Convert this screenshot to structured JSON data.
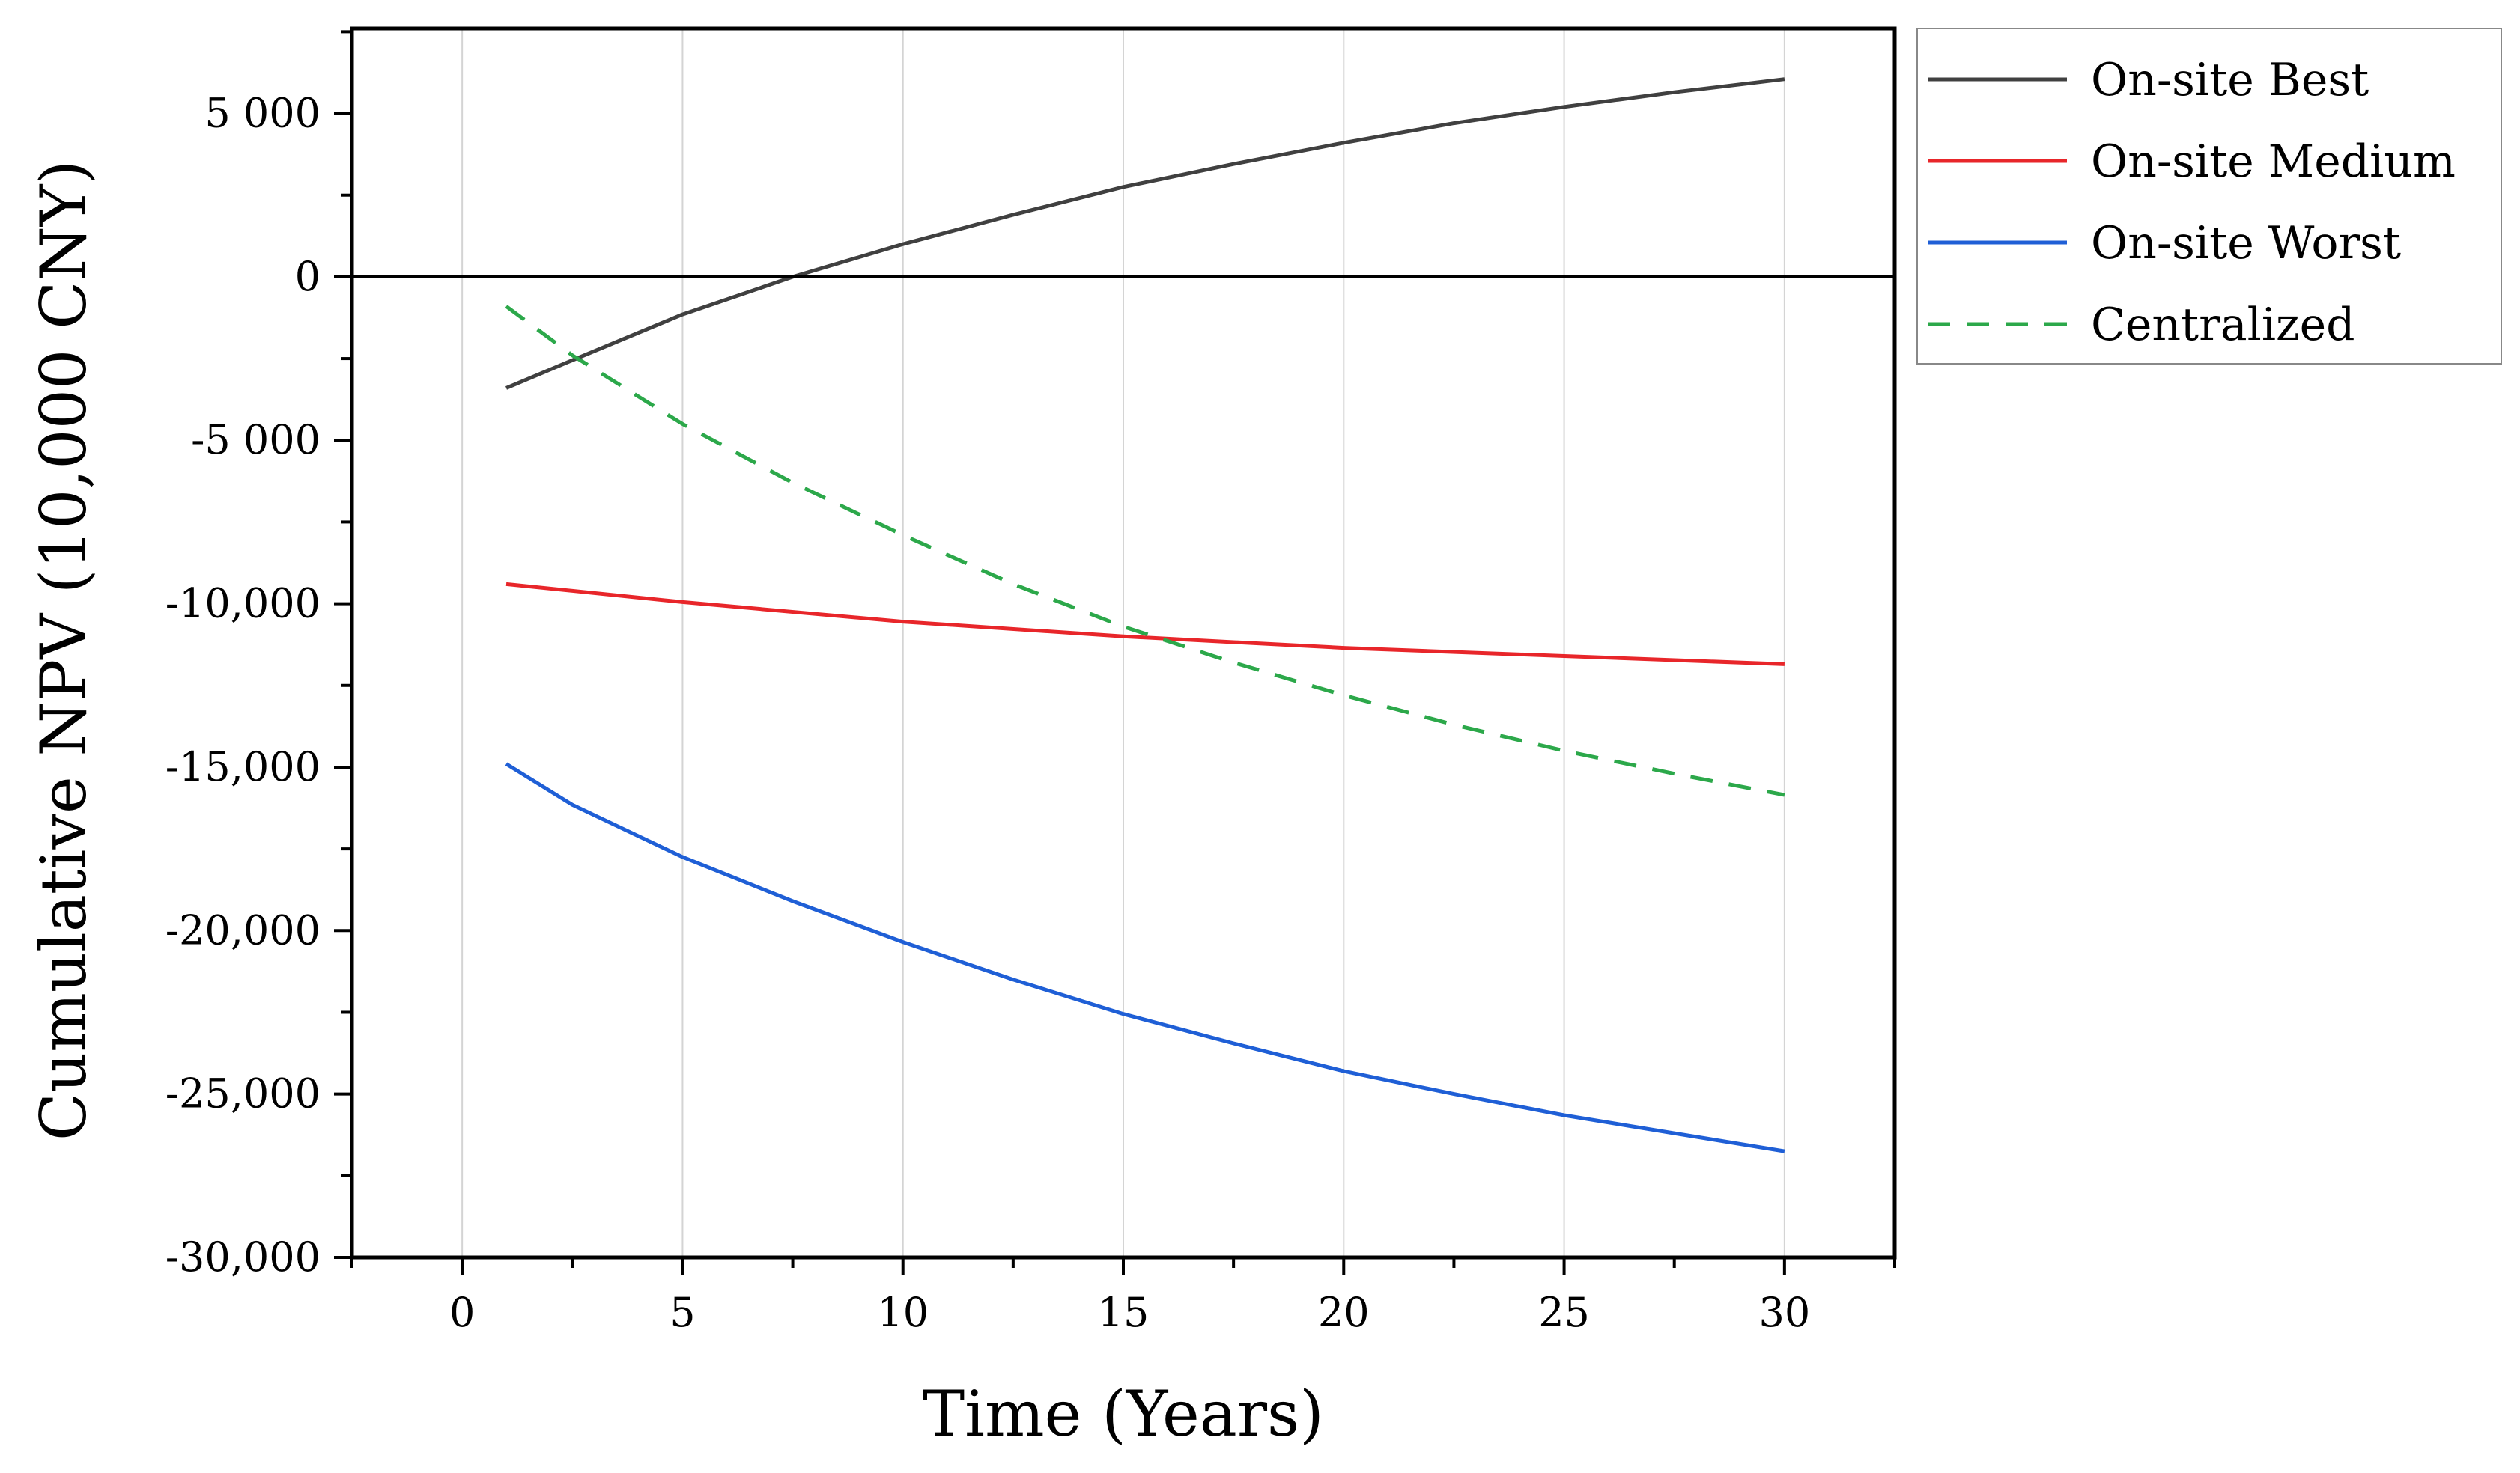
{
  "chart_data": {
    "type": "line",
    "xlabel": "Time (Years)",
    "ylabel": "Cumulative NPV (10,000 CNY)",
    "xlim": [
      -2.5,
      32.5
    ],
    "ylim": [
      -30000,
      7600
    ],
    "xticks": [
      0,
      5,
      10,
      15,
      20,
      25,
      30
    ],
    "xtick_labels": [
      "0",
      "5",
      "10",
      "15",
      "20",
      "25",
      "30"
    ],
    "yticks": [
      5000,
      0,
      -5000,
      -10000,
      -15000,
      -20000,
      -25000,
      -30000
    ],
    "ytick_labels": [
      "5 000",
      "0",
      "-5 000",
      "-10,000",
      "-15,000",
      "-20,000",
      "-25,000",
      "-30,000"
    ],
    "grid": "vertical",
    "legend_position": "top-right-outside",
    "reference_line_y": 0,
    "series": [
      {
        "name": "On-site Best",
        "color": "#404040",
        "style": "solid",
        "x": [
          1,
          2.5,
          5,
          7.5,
          10,
          12.5,
          15,
          17.5,
          20,
          22.5,
          25,
          27.5,
          30
        ],
        "values": [
          -3400,
          -2550,
          -1150,
          0,
          1000,
          1900,
          2750,
          3450,
          4100,
          4700,
          5200,
          5650,
          6050
        ]
      },
      {
        "name": "On-site Medium",
        "color": "#e8262a",
        "style": "solid",
        "x": [
          1,
          5,
          10,
          15,
          20,
          25,
          30
        ],
        "values": [
          -9400,
          -9950,
          -10550,
          -11000,
          -11350,
          -11600,
          -11850
        ]
      },
      {
        "name": "On-site Worst",
        "color": "#1f5fd6",
        "style": "solid",
        "x": [
          1,
          2.5,
          5,
          7.5,
          10,
          12.5,
          15,
          17.5,
          20,
          22.5,
          25,
          27.5,
          30
        ],
        "values": [
          -14900,
          -16150,
          -17750,
          -19100,
          -20350,
          -21500,
          -22550,
          -23450,
          -24300,
          -25000,
          -25650,
          -26200,
          -26750
        ]
      },
      {
        "name": "Centralized",
        "color": "#2ca84a",
        "style": "dashed",
        "x": [
          1,
          2.5,
          5,
          7.5,
          10,
          12.5,
          15,
          17.5,
          20,
          22.5,
          25,
          27.5,
          30
        ],
        "values": [
          -900,
          -2400,
          -4500,
          -6300,
          -7900,
          -9400,
          -10700,
          -11800,
          -12800,
          -13700,
          -14500,
          -15200,
          -15850
        ]
      }
    ]
  }
}
